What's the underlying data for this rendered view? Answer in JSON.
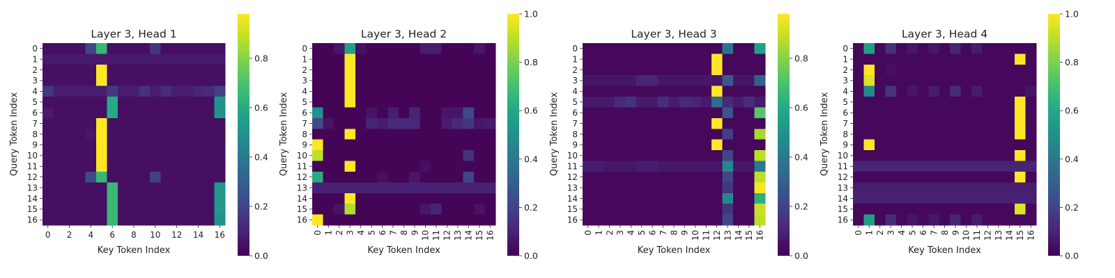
{
  "chart_data": [
    {
      "type": "heatmap",
      "title": "Layer 3, Head 1",
      "xlabel": "Key Token Index",
      "ylabel": "Query Token Index",
      "x_ticks": [
        "0",
        "2",
        "4",
        "6",
        "8",
        "10",
        "12",
        "14",
        "16"
      ],
      "x_tick_positions": [
        0,
        2,
        4,
        6,
        8,
        10,
        12,
        14,
        16
      ],
      "y_ticks": [
        "0",
        "1",
        "2",
        "3",
        "4",
        "5",
        "6",
        "7",
        "8",
        "9",
        "10",
        "11",
        "12",
        "13",
        "14",
        "15",
        "16"
      ],
      "colorbar_ticks": [
        "0.0",
        "0.2",
        "0.4",
        "0.6",
        "0.8"
      ],
      "colorbar_range": [
        0,
        0.98
      ],
      "colormap": "viridis",
      "spec": {
        "base": 0.04,
        "rows": [
          {
            "row": 0,
            "cells": {
              "4": 0.2,
              "5": 0.65,
              "10": 0.15
            }
          },
          {
            "row": 1,
            "fill": 0.07
          },
          {
            "row": 2,
            "cells": {
              "5": 0.98
            }
          },
          {
            "row": 3,
            "cells": {
              "5": 0.98
            }
          },
          {
            "row": 4,
            "fill": 0.08,
            "cells": {
              "0": 0.16,
              "6": 0.16,
              "9": 0.14,
              "11": 0.12,
              "14": 0.1,
              "15": 0.12,
              "16": 0.18
            }
          },
          {
            "row": 5,
            "cells": {
              "6": 0.6,
              "16": 0.5
            }
          },
          {
            "row": 6,
            "cells": {
              "0": 0.07,
              "6": 0.6,
              "16": 0.5
            }
          },
          {
            "row": 7,
            "cells": {
              "5": 0.98
            }
          },
          {
            "row": 8,
            "cells": {
              "4": 0.06,
              "5": 0.98
            }
          },
          {
            "row": 9,
            "cells": {
              "5": 0.98
            }
          },
          {
            "row": 10,
            "cells": {
              "5": 0.98
            }
          },
          {
            "row": 11,
            "cells": {
              "5": 0.98
            }
          },
          {
            "row": 12,
            "cells": {
              "4": 0.22,
              "5": 0.65,
              "10": 0.18
            }
          },
          {
            "row": 13,
            "cells": {
              "6": 0.65,
              "16": 0.52
            }
          },
          {
            "row": 14,
            "cells": {
              "6": 0.65,
              "16": 0.52
            }
          },
          {
            "row": 15,
            "cells": {
              "6": 0.65,
              "16": 0.52
            }
          },
          {
            "row": 16,
            "cells": {
              "6": 0.65,
              "16": 0.5
            }
          }
        ]
      }
    },
    {
      "type": "heatmap",
      "title": "Layer 3, Head 2",
      "xlabel": "Key Token Index",
      "ylabel": "Query Token Index",
      "x_ticks": [
        "0",
        "1",
        "2",
        "3",
        "4",
        "5",
        "6",
        "7",
        "8",
        "9",
        "10",
        "11",
        "12",
        "13",
        "14",
        "15",
        "16"
      ],
      "x_tick_positions": [
        0,
        1,
        2,
        3,
        4,
        5,
        6,
        7,
        8,
        9,
        10,
        11,
        12,
        13,
        14,
        15,
        16
      ],
      "x_tick_rotation": 90,
      "y_ticks": [
        "0",
        "1",
        "2",
        "3",
        "4",
        "5",
        "6",
        "7",
        "8",
        "9",
        "10",
        "11",
        "12",
        "13",
        "14",
        "15",
        "16"
      ],
      "colorbar_ticks": [
        "0.0",
        "0.2",
        "0.4",
        "0.6",
        "0.8",
        "1.0"
      ],
      "colorbar_range": [
        0,
        1.0
      ],
      "colormap": "viridis",
      "spec": {
        "base": 0.01,
        "rows": [
          {
            "row": 0,
            "cells": {
              "2": 0.06,
              "3": 0.55,
              "4": 0.04,
              "10": 0.08,
              "11": 0.08,
              "15": 0.06
            }
          },
          {
            "row": 1,
            "cells": {
              "3": 1.0
            }
          },
          {
            "row": 2,
            "cells": {
              "3": 1.0
            }
          },
          {
            "row": 3,
            "cells": {
              "3": 1.0
            }
          },
          {
            "row": 4,
            "cells": {
              "3": 1.0
            }
          },
          {
            "row": 5,
            "cells": {
              "3": 1.0
            }
          },
          {
            "row": 6,
            "cells": {
              "0": 0.5,
              "5": 0.05,
              "7": 0.08,
              "9": 0.1,
              "12": 0.06,
              "13": 0.06,
              "14": 0.22
            }
          },
          {
            "row": 7,
            "cells": {
              "0": 0.22,
              "1": 0.05,
              "5": 0.1,
              "6": 0.08,
              "7": 0.12,
              "8": 0.12,
              "9": 0.12,
              "12": 0.08,
              "13": 0.12,
              "14": 0.16,
              "15": 0.06,
              "16": 0.08
            }
          },
          {
            "row": 8,
            "cells": {
              "3": 1.0
            }
          },
          {
            "row": 9,
            "cells": {
              "0": 1.0
            }
          },
          {
            "row": 10,
            "cells": {
              "0": 0.9,
              "14": 0.14
            }
          },
          {
            "row": 11,
            "cells": {
              "3": 1.0,
              "10": 0.04
            }
          },
          {
            "row": 12,
            "cells": {
              "0": 0.62,
              "6": 0.04,
              "9": 0.06,
              "14": 0.2
            }
          },
          {
            "row": 13,
            "fill": 0.09
          },
          {
            "row": 14,
            "cells": {
              "3": 1.0
            }
          },
          {
            "row": 15,
            "cells": {
              "2": 0.05,
              "3": 0.88,
              "10": 0.06,
              "11": 0.1,
              "15": 0.05
            }
          },
          {
            "row": 16,
            "cells": {
              "0": 1.0
            }
          }
        ]
      }
    },
    {
      "type": "heatmap",
      "title": "Layer 3, Head 3",
      "xlabel": "Key Token Index",
      "ylabel": "Query Token Index",
      "x_ticks": [
        "0",
        "1",
        "2",
        "3",
        "4",
        "5",
        "6",
        "7",
        "8",
        "9",
        "10",
        "11",
        "12",
        "13",
        "14",
        "15",
        "16"
      ],
      "x_tick_positions": [
        0,
        1,
        2,
        3,
        4,
        5,
        6,
        7,
        8,
        9,
        10,
        11,
        12,
        13,
        14,
        15,
        16
      ],
      "x_tick_rotation": 90,
      "y_ticks": [
        "0",
        "1",
        "2",
        "3",
        "4",
        "5",
        "6",
        "7",
        "8",
        "9",
        "10",
        "11",
        "12",
        "13",
        "14",
        "15",
        "16"
      ],
      "colorbar_ticks": [
        "0.0",
        "0.2",
        "0.4",
        "0.6",
        "0.8"
      ],
      "colorbar_range": [
        0,
        0.98
      ],
      "colormap": "viridis",
      "spec": {
        "base": 0.02,
        "rows": [
          {
            "row": 0,
            "cells": {
              "13": 0.38,
              "16": 0.55
            }
          },
          {
            "row": 1,
            "cells": {
              "12": 0.98
            }
          },
          {
            "row": 2,
            "cells": {
              "12": 0.98
            }
          },
          {
            "row": 3,
            "fill": 0.06,
            "cells": {
              "5": 0.1,
              "6": 0.1,
              "13": 0.28,
              "16": 0.3
            }
          },
          {
            "row": 4,
            "cells": {
              "12": 0.98
            }
          },
          {
            "row": 5,
            "fill": 0.07,
            "cells": {
              "3": 0.12,
              "4": 0.14,
              "7": 0.13,
              "9": 0.12,
              "10": 0.1,
              "12": 0.35,
              "13": 0.12,
              "15": 0.13
            }
          },
          {
            "row": 6,
            "cells": {
              "13": 0.25,
              "16": 0.72
            }
          },
          {
            "row": 7,
            "cells": {
              "12": 0.98
            }
          },
          {
            "row": 8,
            "cells": {
              "13": 0.18,
              "16": 0.85
            }
          },
          {
            "row": 9,
            "cells": {
              "12": 0.98
            }
          },
          {
            "row": 10,
            "cells": {
              "13": 0.2,
              "16": 0.88
            }
          },
          {
            "row": 11,
            "fill": 0.06,
            "cells": {
              "0": 0.08,
              "1": 0.08,
              "5": 0.08,
              "6": 0.08,
              "13": 0.45,
              "16": 0.4
            }
          },
          {
            "row": 12,
            "cells": {
              "13": 0.2,
              "16": 0.88
            }
          },
          {
            "row": 13,
            "cells": {
              "13": 0.15,
              "16": 0.97
            }
          },
          {
            "row": 14,
            "cells": {
              "13": 0.45,
              "16": 0.62
            }
          },
          {
            "row": 15,
            "cells": {
              "13": 0.15,
              "16": 0.9
            }
          },
          {
            "row": 16,
            "cells": {
              "13": 0.2,
              "16": 0.88
            }
          }
        ]
      }
    },
    {
      "type": "heatmap",
      "title": "Layer 3, Head 4",
      "xlabel": "Key Token Index",
      "ylabel": "Query Token Index",
      "x_ticks": [
        "0",
        "1",
        "2",
        "3",
        "4",
        "5",
        "6",
        "7",
        "8",
        "9",
        "10",
        "11",
        "12",
        "13",
        "14",
        "15",
        "16"
      ],
      "x_tick_positions": [
        0,
        1,
        2,
        3,
        4,
        5,
        6,
        7,
        8,
        9,
        10,
        11,
        12,
        13,
        14,
        15,
        16
      ],
      "x_tick_rotation": 90,
      "y_ticks": [
        "0",
        "1",
        "2",
        "3",
        "4",
        "5",
        "6",
        "7",
        "8",
        "9",
        "10",
        "11",
        "12",
        "13",
        "14",
        "15",
        "16"
      ],
      "colorbar_ticks": [
        "0.0",
        "0.2",
        "0.4",
        "0.6",
        "0.8",
        "1.0"
      ],
      "colorbar_range": [
        0,
        1.0
      ],
      "colormap": "viridis",
      "spec": {
        "base": 0.02,
        "rows": [
          {
            "row": 0,
            "cells": {
              "1": 0.55,
              "3": 0.14,
              "5": 0.06,
              "7": 0.06,
              "9": 0.1,
              "11": 0.08
            }
          },
          {
            "row": 1,
            "cells": {
              "15": 1.0
            }
          },
          {
            "row": 2,
            "cells": {
              "1": 1.0,
              "3": 0.04
            }
          },
          {
            "row": 3,
            "cells": {
              "1": 0.95
            }
          },
          {
            "row": 4,
            "cells": {
              "1": 0.45,
              "3": 0.16,
              "5": 0.06,
              "7": 0.08,
              "9": 0.12,
              "11": 0.08,
              "16": 0.05
            }
          },
          {
            "row": 5,
            "cells": {
              "15": 1.0
            }
          },
          {
            "row": 6,
            "cells": {
              "15": 1.0
            }
          },
          {
            "row": 7,
            "cells": {
              "15": 1.0
            }
          },
          {
            "row": 8,
            "cells": {
              "15": 1.0
            }
          },
          {
            "row": 9,
            "cells": {
              "1": 1.0
            }
          },
          {
            "row": 10,
            "cells": {
              "15": 1.0
            }
          },
          {
            "row": 11,
            "fill": 0.1
          },
          {
            "row": 12,
            "cells": {
              "15": 1.0
            }
          },
          {
            "row": 13,
            "fill": 0.08
          },
          {
            "row": 14,
            "fill": 0.09
          },
          {
            "row": 15,
            "cells": {
              "15": 0.95
            }
          },
          {
            "row": 16,
            "cells": {
              "1": 0.55,
              "3": 0.12,
              "5": 0.06,
              "7": 0.06,
              "9": 0.1,
              "11": 0.08
            }
          }
        ]
      }
    }
  ]
}
